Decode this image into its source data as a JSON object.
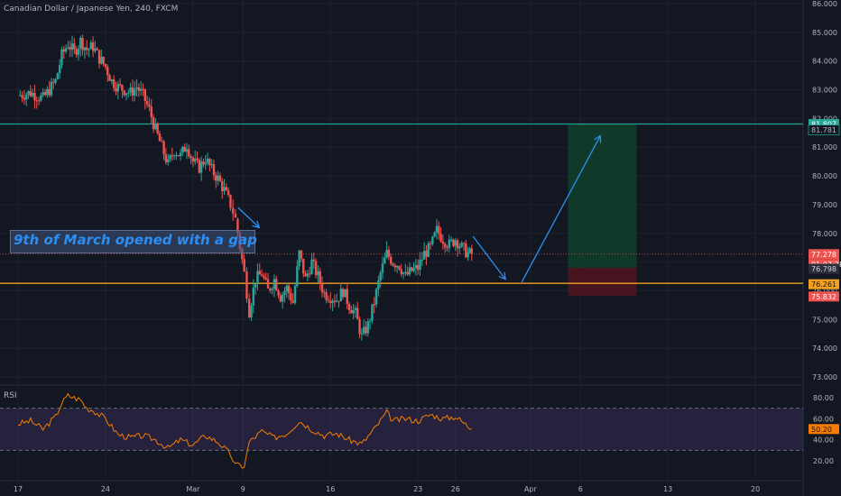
{
  "colors": {
    "background": "#131722",
    "grid": "#1e222d",
    "bull": "#26a69a",
    "bear": "#ef5350",
    "teal_line": "#1f9e8e",
    "orange_line": "#f49f1d",
    "arrow": "#2d8ef1",
    "rsi_line": "#f57c00",
    "rsi_band": "#7e57c2",
    "target_zone": "#0f3d2a",
    "stop_zone": "#4a1420"
  },
  "annotation": "9th of March opened with a gap",
  "chart_data": {
    "type": "candlestick",
    "title": "Canadian Dollar / Japanese Yen, 240, FXCM",
    "x_ticks": [
      "17",
      "24",
      "Mar",
      "9",
      "16",
      "23",
      "26",
      "Apr",
      "6",
      "13",
      "20"
    ],
    "y_ticks": [
      "86.000",
      "85.000",
      "84.000",
      "83.000",
      "82.000",
      "81.000",
      "80.000",
      "79.000",
      "78.000",
      "77.000",
      "76.000",
      "75.000",
      "74.000",
      "73.000"
    ],
    "ylim": [
      72.8,
      86.1
    ],
    "close_path": [
      [
        17,
        82.8
      ],
      [
        18,
        82.9
      ],
      [
        19,
        82.7
      ],
      [
        20,
        83.3
      ],
      [
        20.5,
        84.2
      ],
      [
        21,
        84.6
      ],
      [
        21.5,
        84.3
      ],
      [
        22,
        84.7
      ],
      [
        22.5,
        84.4
      ],
      [
        23,
        84.5
      ],
      [
        23.5,
        84.1
      ],
      [
        24,
        83.8
      ],
      [
        24.5,
        83.3
      ],
      [
        25,
        83.1
      ],
      [
        25.5,
        83.0
      ],
      [
        26,
        82.9
      ],
      [
        26.5,
        83.1
      ],
      [
        27,
        82.8
      ],
      [
        27.5,
        82.3
      ],
      [
        28,
        81.6
      ],
      [
        28.5,
        81.0
      ],
      [
        29,
        80.4
      ],
      [
        29.5,
        80.9
      ],
      [
        30,
        80.7
      ],
      [
        30.5,
        81.1
      ],
      [
        31,
        80.5
      ],
      [
        31.5,
        80.3
      ],
      [
        32,
        80.6
      ],
      [
        32.5,
        80.2
      ],
      [
        33,
        79.9
      ],
      [
        33.5,
        79.5
      ],
      [
        34,
        79.0
      ],
      [
        34.4,
        78.5
      ],
      [
        35.1,
        76.6
      ],
      [
        35.5,
        75.3
      ],
      [
        36,
        76.4
      ],
      [
        36.5,
        76.6
      ],
      [
        37,
        76.0
      ],
      [
        37.5,
        76.4
      ],
      [
        38,
        75.8
      ],
      [
        38.5,
        76.1
      ],
      [
        39,
        75.6
      ],
      [
        39.5,
        77.3
      ],
      [
        40,
        76.4
      ],
      [
        40.5,
        77.0
      ],
      [
        41,
        76.5
      ],
      [
        41.5,
        75.9
      ],
      [
        42,
        75.8
      ],
      [
        42.5,
        75.7
      ],
      [
        43,
        76.0
      ],
      [
        43.5,
        75.5
      ],
      [
        44,
        75.2
      ],
      [
        44.5,
        74.4
      ],
      [
        45,
        74.8
      ],
      [
        45.5,
        75.6
      ],
      [
        46,
        76.6
      ],
      [
        46.5,
        77.3
      ],
      [
        47,
        77.0
      ],
      [
        47.5,
        76.9
      ],
      [
        48,
        76.5
      ],
      [
        48.5,
        76.7
      ],
      [
        49,
        76.8
      ],
      [
        49.5,
        77.3
      ],
      [
        50,
        77.5
      ],
      [
        50.5,
        78.1
      ],
      [
        51,
        77.8
      ],
      [
        51.5,
        77.6
      ],
      [
        52,
        77.8
      ],
      [
        52.5,
        77.5
      ],
      [
        53,
        77.3
      ],
      [
        53.3,
        77.28
      ]
    ],
    "last_price": "77.278",
    "countdown": "01:07:28",
    "horizontal_lines": {
      "resistance": 81.807,
      "support": 76.261
    },
    "position": {
      "target": 81.807,
      "entry": 76.798,
      "stop": 75.832,
      "from_day": 61,
      "to_day": 66.5
    },
    "projection_arrows": [
      {
        "from": [
          34.6,
          78.9
        ],
        "to": [
          36.3,
          78.2
        ]
      },
      {
        "from": [
          53.4,
          77.9
        ],
        "to": [
          56.0,
          76.4
        ]
      },
      {
        "from": [
          57.3,
          76.3
        ],
        "to": [
          63.6,
          81.4
        ]
      }
    ],
    "price_labels": [
      "81.807",
      "81.781",
      "77.278",
      "01:07:28",
      "76.798",
      "76.261",
      "75.832"
    ],
    "rsi": {
      "label": "RSI",
      "y_ticks": [
        "80.00",
        "60.00",
        "40.00",
        "20.00"
      ],
      "upper_band": 70,
      "lower_band": 30,
      "ylim": [
        12,
        87
      ],
      "value_labels": [
        "50.20"
      ],
      "points": [
        [
          17,
          55
        ],
        [
          18,
          58
        ],
        [
          19,
          50
        ],
        [
          20,
          62
        ],
        [
          20.5,
          75
        ],
        [
          21,
          82
        ],
        [
          21.5,
          80
        ],
        [
          22,
          78
        ],
        [
          22.5,
          70
        ],
        [
          23,
          68
        ],
        [
          24,
          60
        ],
        [
          25,
          45
        ],
        [
          26,
          42
        ],
        [
          27,
          44
        ],
        [
          28,
          40
        ],
        [
          29,
          32
        ],
        [
          30,
          40
        ],
        [
          31,
          35
        ],
        [
          32,
          44
        ],
        [
          33,
          38
        ],
        [
          34,
          26
        ],
        [
          34.4,
          16
        ],
        [
          35.1,
          15
        ],
        [
          35.5,
          38
        ],
        [
          36.5,
          48
        ],
        [
          37.5,
          42
        ],
        [
          38.5,
          46
        ],
        [
          39.5,
          58
        ],
        [
          40.5,
          50
        ],
        [
          41.5,
          44
        ],
        [
          42.5,
          46
        ],
        [
          43.5,
          40
        ],
        [
          44.5,
          36
        ],
        [
          45.5,
          50
        ],
        [
          46.5,
          66
        ],
        [
          47,
          58
        ],
        [
          48,
          60
        ],
        [
          49,
          58
        ],
        [
          50,
          64
        ],
        [
          51,
          60
        ],
        [
          52,
          62
        ],
        [
          53.3,
          50.2
        ]
      ]
    }
  }
}
